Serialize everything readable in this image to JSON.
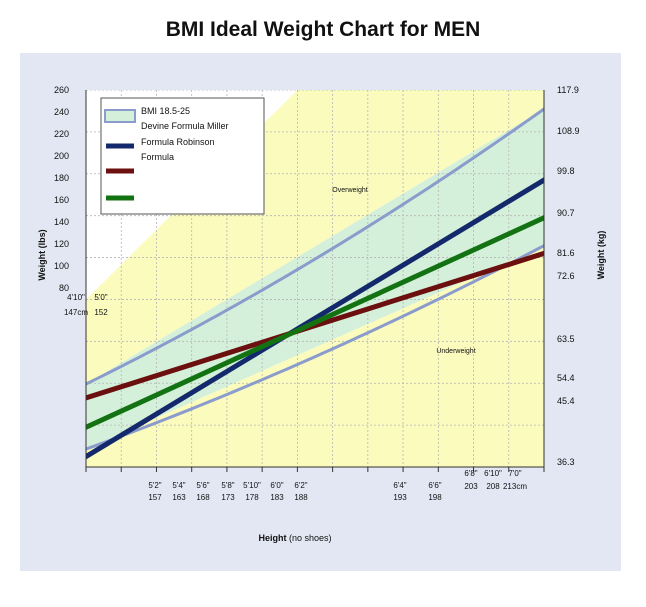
{
  "title": "BMI Ideal Weight Chart for MEN",
  "chart_data": {
    "type": "line",
    "title": "BMI Ideal Weight Chart for MEN",
    "xlabel": "Height",
    "xlabel_note": "(no shoes)",
    "ylabel_left": "Weight (lbs)",
    "ylabel_right": "Weight (kg)",
    "x_ticks": [
      {
        "ft": "4'10\"",
        "cm": "147cm"
      },
      {
        "ft": "5'0\"",
        "cm": "152"
      },
      {
        "ft": "5'2\"",
        "cm": "157"
      },
      {
        "ft": "5'4\"",
        "cm": "163"
      },
      {
        "ft": "5'6\"",
        "cm": "168"
      },
      {
        "ft": "5'8\"",
        "cm": "173"
      },
      {
        "ft": "5'10\"",
        "cm": "178"
      },
      {
        "ft": "6'0\"",
        "cm": "183"
      },
      {
        "ft": "6'2\"",
        "cm": "188"
      },
      {
        "ft": "6'4\"",
        "cm": "193"
      },
      {
        "ft": "6'6\"",
        "cm": "198"
      },
      {
        "ft": "6'8\"",
        "cm": "203"
      },
      {
        "ft": "6'10\"",
        "cm": "208"
      },
      {
        "ft": "7'0\"",
        "cm": "213cm"
      }
    ],
    "y_left_ticks": [
      "260",
      "240",
      "220",
      "200",
      "180",
      "160",
      "140",
      "120",
      "100",
      "80"
    ],
    "y_right_ticks": [
      "117.9",
      "108.9",
      "99.8",
      "90.7",
      "81.6",
      "72.6",
      "63.5",
      "54.4",
      "45.4",
      "36.3"
    ],
    "regions": [
      {
        "name": "Overweight",
        "label": "Overweight",
        "color": "#fbfbbe"
      },
      {
        "name": "Underweight",
        "label": "Underweight",
        "color": "#fbfbbe"
      },
      {
        "name": "BMI 18.5-25",
        "color": "#d4f0da"
      }
    ],
    "series": [
      {
        "name": "BMI 18.5-25",
        "color": "#8a9ccc",
        "heights_in": [
          58,
          84
        ],
        "bmi": [
          18.5,
          25
        ]
      },
      {
        "name": "Devine Formula",
        "color": "#13296b",
        "x_in": [
          58,
          84
        ],
        "y_lbs": [
          85,
          217
        ]
      },
      {
        "name": "Miller Formula",
        "color": "#6b0f0f",
        "x_in": [
          58,
          84
        ],
        "y_lbs": [
          113,
          182
        ]
      },
      {
        "name": "Robinson Formula",
        "color": "#137313",
        "x_in": [
          58,
          84
        ],
        "y_lbs": [
          99,
          199
        ]
      }
    ],
    "grid": true
  },
  "legend": {
    "line1": "BMI 18.5-25",
    "line2": "Devine Formula Miller",
    "line3": "Formula Robinson",
    "line4": "Formula"
  },
  "annotations": {
    "overweight": "Overweight",
    "underweight": "Underweight"
  }
}
